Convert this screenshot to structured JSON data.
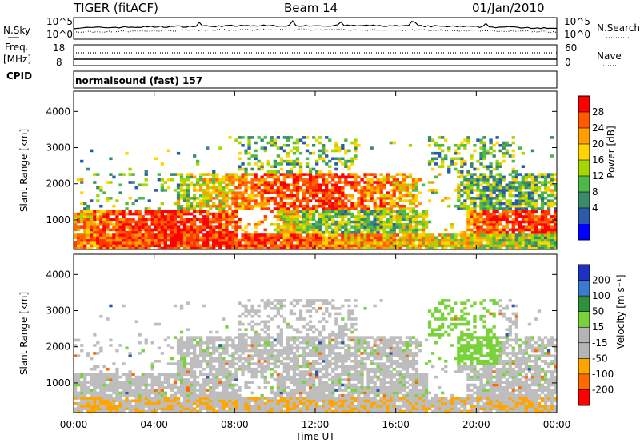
{
  "header": {
    "radar": "TIGER (fitACF)",
    "beam": "Beam 14",
    "date": "01/Jan/2010"
  },
  "sky_panel": {
    "left_label": "N.Sky",
    "left_ticks": [
      "10^5",
      "10^0"
    ],
    "right_ticks": [
      "10^5",
      "10^0"
    ],
    "right_label": "N.Search"
  },
  "freq_panel": {
    "left_label_1": "Freq.",
    "left_label_2": "[MHz]",
    "left_ticks": [
      "18",
      "8"
    ],
    "right_ticks": [
      "60",
      "0"
    ],
    "right_label": "Nave"
  },
  "cpid": {
    "label": "CPID",
    "text": "normalsound (fast) 157"
  },
  "chart_data": [
    {
      "type": "heatmap",
      "name": "power",
      "ylabel": "Slant Range [km]",
      "y_ticks": [
        "4000",
        "3000",
        "2000",
        "1000"
      ],
      "ylim": [
        180,
        4560
      ],
      "x_range_hours": [
        0,
        24
      ],
      "colorbar_label": "Power [dB]",
      "colorbar_ticks": [
        "28",
        "24",
        "20",
        "16",
        "12",
        "8",
        "4"
      ],
      "colorbar_colors": [
        "#ff0000",
        "#ff5a00",
        "#ff9e00",
        "#ffd400",
        "#a6d600",
        "#4fb84a",
        "#3a8a6b",
        "#2a5aa8",
        "#0000ff"
      ]
    },
    {
      "type": "heatmap",
      "name": "velocity",
      "ylabel": "Slant Range [km]",
      "y_ticks": [
        "4000",
        "3000",
        "2000",
        "1000"
      ],
      "ylim": [
        180,
        4560
      ],
      "x_range_hours": [
        0,
        24
      ],
      "xlabel": "Time UT",
      "x_ticks": [
        "00:00",
        "04:00",
        "08:00",
        "12:00",
        "16:00",
        "20:00",
        "00:00"
      ],
      "colorbar_label": "Velocity [m s⁻¹]",
      "colorbar_ticks": [
        "200",
        "100",
        "50",
        "15",
        "-15",
        "-50",
        "-100",
        "-200"
      ],
      "colorbar_colors": [
        "#2030c0",
        "#3a7ad0",
        "#2f8f3a",
        "#7ad23a",
        "#b4b4b4",
        "#b4b4b4",
        "#ffa500",
        "#ff6a00",
        "#ff0000"
      ]
    }
  ]
}
